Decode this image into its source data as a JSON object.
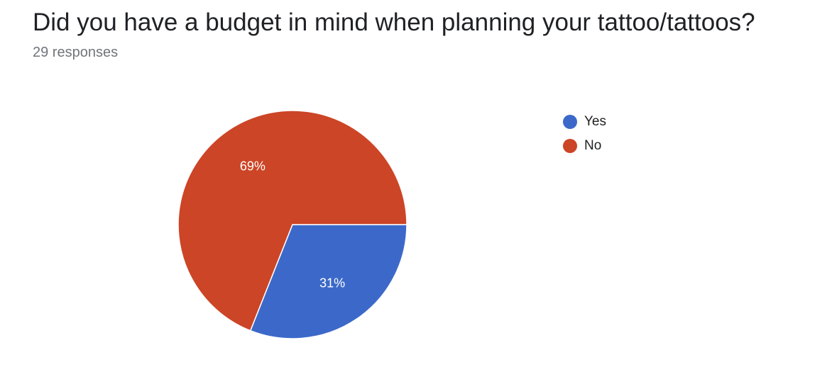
{
  "title": "Did you have a budget in mind when planning your tattoo/tattoos?",
  "subtitle": "29 responses",
  "chart_data": {
    "type": "pie",
    "title": "Did you have a budget in mind when planning your tattoo/tattoos?",
    "slices": [
      {
        "label": "Yes",
        "value": 31,
        "display": "31%",
        "color": "#3c69c9"
      },
      {
        "label": "No",
        "value": 69,
        "display": "69%",
        "color": "#cc4526"
      }
    ],
    "legend_position": "right"
  }
}
